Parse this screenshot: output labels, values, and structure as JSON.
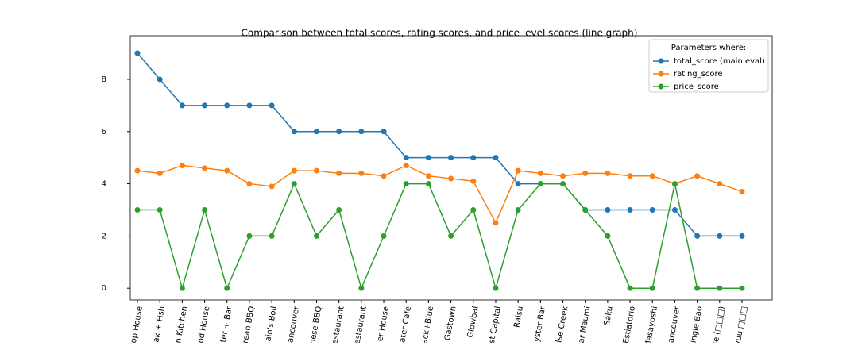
{
  "chart_data": {
    "type": "line",
    "title": "Comparison between total scores, rating scores, and price level scores (line graph)",
    "categories": [
      "op House",
      "ak + Fish",
      "n Kitchen",
      "od House",
      "ter + Bar",
      "rean BBQ",
      "ain's Boil",
      "ancouver",
      "nese BBQ",
      "estaurant",
      "estaurant",
      "er House",
      "ater Cafe",
      "ack+Blue",
      "Gastown",
      "Glowbal",
      "st Capital",
      "Raisu",
      "yster Bar",
      "lse Creek",
      "ar Maumi",
      "Saku",
      "Estiatorio",
      "Masayoshi",
      "ancouver",
      "ingle Bao",
      "use (□□□)",
      "Syuu □□□"
    ],
    "series": [
      {
        "name": "total_score (main eval)",
        "color": "#1f77b4",
        "values": [
          9,
          8,
          7,
          7,
          7,
          7,
          7,
          6,
          6,
          6,
          6,
          6,
          5,
          5,
          5,
          5,
          5,
          4,
          4,
          4,
          3,
          3,
          3,
          3,
          3,
          2,
          2,
          2
        ]
      },
      {
        "name": "rating_score",
        "color": "#ff7f0e",
        "values": [
          4.5,
          4.4,
          4.7,
          4.6,
          4.5,
          4.0,
          3.9,
          4.5,
          4.5,
          4.4,
          4.4,
          4.3,
          4.7,
          4.3,
          4.2,
          4.1,
          2.5,
          4.5,
          4.4,
          4.3,
          4.4,
          4.4,
          4.3,
          4.3,
          4.0,
          4.3,
          4.0,
          3.7
        ]
      },
      {
        "name": "price_score",
        "color": "#2ca02c",
        "values": [
          3,
          3,
          0,
          3,
          0,
          2,
          2,
          4,
          2,
          3,
          0,
          2,
          4,
          4,
          2,
          3,
          0,
          3,
          4,
          4,
          3,
          2,
          0,
          0,
          4,
          0,
          0,
          0
        ]
      }
    ],
    "legend_title": "Parameters where:",
    "legend": "upper right",
    "ylim": [
      -0.45,
      9.67
    ],
    "yticks": [
      0,
      2,
      4,
      6,
      8
    ]
  }
}
